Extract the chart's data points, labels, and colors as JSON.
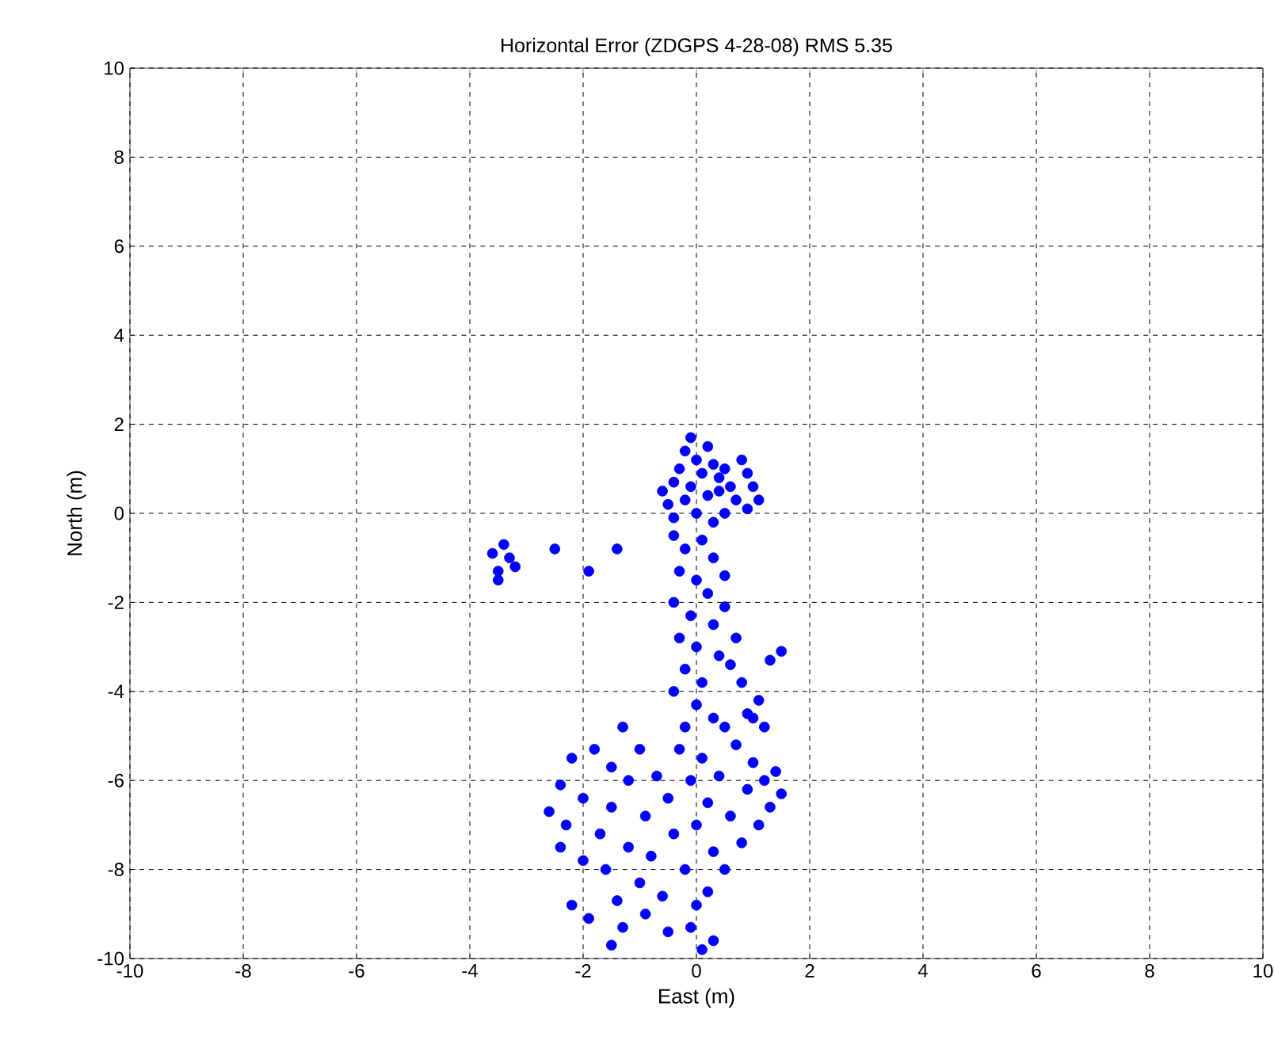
{
  "chart_data": {
    "type": "scatter",
    "title": "Horizontal Error (ZDGPS 4-28-08) RMS  5.35",
    "xlabel": "East (m)",
    "ylabel": "North (m)",
    "xlim": [
      -10,
      10
    ],
    "ylim": [
      -10,
      10
    ],
    "xticks": [
      -10,
      -8,
      -6,
      -4,
      -2,
      0,
      2,
      4,
      6,
      8,
      10
    ],
    "yticks": [
      -10,
      -8,
      -6,
      -4,
      -2,
      0,
      2,
      4,
      6,
      8,
      10
    ],
    "grid": true,
    "series": [
      {
        "color": "#0000ff",
        "x": [
          -0.6,
          -0.5,
          -0.4,
          -0.3,
          -0.2,
          -0.1,
          0,
          0.1,
          0.2,
          0.3,
          0.4,
          0.5,
          0.6,
          0.8,
          0.9,
          1.0,
          1.1,
          0.9,
          0.7,
          0.5,
          0.3,
          0,
          -0.2,
          -0.4,
          0.2,
          -0.1,
          0.4,
          -0.4,
          -0.2,
          0.1,
          0.3,
          -0.3,
          0,
          0.2,
          -0.4,
          -0.1,
          0.3,
          0.5,
          -0.3,
          0,
          0.4,
          -0.2,
          0.1,
          0.6,
          -0.4,
          0,
          0.3,
          -0.2,
          0.7,
          0.5,
          0.8,
          1.1,
          1.3,
          1.5,
          1.2,
          0.9,
          -2.6,
          -2.4,
          -2.3,
          -2.2,
          -2.0,
          -2.0,
          -1.8,
          -1.7,
          -1.6,
          -1.5,
          -1.5,
          -1.3,
          -1.2,
          -1.2,
          -1.0,
          -1.0,
          -0.9,
          -0.8,
          -0.7,
          -0.6,
          -0.5,
          -0.4,
          -0.3,
          -0.2,
          -0.1,
          0,
          0,
          0.1,
          0.2,
          0.3,
          0.4,
          0.5,
          0.6,
          0.7,
          0.8,
          0.9,
          1.0,
          1.1,
          1.2,
          1.3,
          1.4,
          1.5,
          -2.2,
          -1.9,
          -1.3,
          -1.5,
          -0.9,
          -0.5,
          -0.1,
          0.1,
          0.3,
          0.2,
          -1.4,
          -2.4,
          0.5,
          1.0,
          -3.6,
          -3.4,
          -3.3,
          -3.5,
          -3.2,
          -3.5,
          -2.5,
          -1.9,
          -1.4
        ],
        "values": [
          0.5,
          0.2,
          0.7,
          1.0,
          1.4,
          1.7,
          1.2,
          0.9,
          1.5,
          1.1,
          0.8,
          1.0,
          0.6,
          1.2,
          0.9,
          0.6,
          0.3,
          0.1,
          0.3,
          0.0,
          -0.2,
          0,
          0.3,
          -0.1,
          0.4,
          0.6,
          0.5,
          -0.5,
          -0.8,
          -0.6,
          -1.0,
          -1.3,
          -1.5,
          -1.8,
          -2.0,
          -2.3,
          -2.5,
          -2.1,
          -2.8,
          -3.0,
          -3.2,
          -3.5,
          -3.8,
          -3.4,
          -4.0,
          -4.3,
          -4.6,
          -4.8,
          -2.8,
          -1.4,
          -3.8,
          -4.2,
          -3.3,
          -3.1,
          -4.8,
          -4.5,
          -6.7,
          -6.1,
          -7.0,
          -5.5,
          -7.8,
          -6.4,
          -5.3,
          -7.2,
          -8.0,
          -5.7,
          -6.6,
          -4.8,
          -7.5,
          -6.0,
          -8.3,
          -5.3,
          -6.8,
          -7.7,
          -5.9,
          -8.6,
          -6.4,
          -7.2,
          -5.3,
          -8.0,
          -6.0,
          -7.0,
          -8.8,
          -5.5,
          -6.5,
          -7.6,
          -5.9,
          -8.0,
          -6.8,
          -5.2,
          -7.4,
          -6.2,
          -5.6,
          -7.0,
          -6.0,
          -6.6,
          -5.8,
          -6.3,
          -8.8,
          -9.1,
          -9.3,
          -9.7,
          -9.0,
          -9.4,
          -9.3,
          -9.8,
          -9.6,
          -8.5,
          -8.7,
          -7.5,
          -4.8,
          -4.6,
          -0.9,
          -0.7,
          -1.0,
          -1.3,
          -1.2,
          -1.5,
          -0.8,
          -1.3,
          -0.8
        ]
      }
    ]
  }
}
